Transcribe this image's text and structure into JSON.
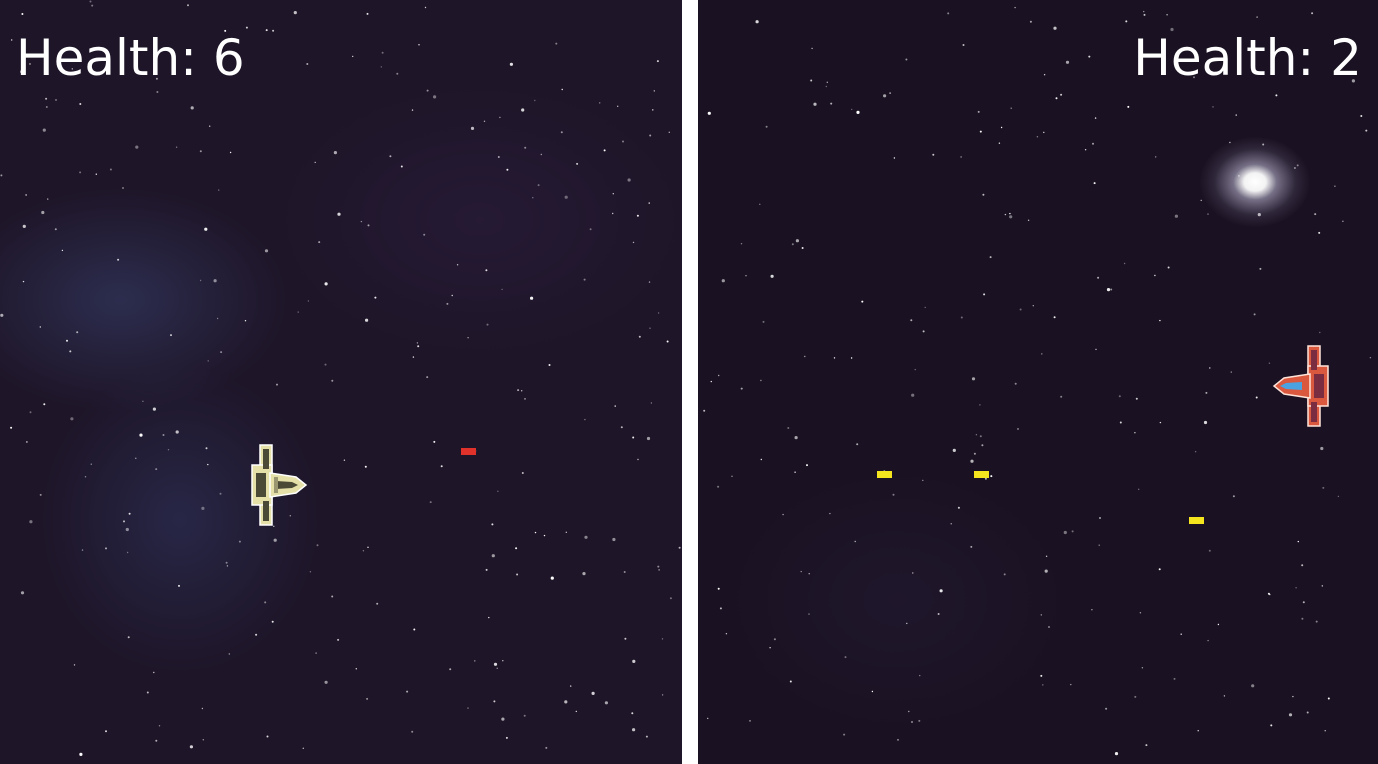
{
  "left_panel": {
    "health_label": "Health: 6",
    "ship": {
      "name": "yellow-spaceship-icon",
      "color": "#e9e6b0",
      "facing": "right"
    },
    "bullets": [
      {
        "color": "#e0322a"
      }
    ]
  },
  "right_panel": {
    "health_label": "Health: 2",
    "ship": {
      "name": "red-spaceship-icon",
      "color": "#d2543f",
      "facing": "left"
    },
    "bullets": [
      {
        "color": "#f5e51f"
      },
      {
        "color": "#f5e51f"
      },
      {
        "color": "#f5e51f"
      }
    ]
  },
  "colors": {
    "background": "#1d1326",
    "divider": "#ffffff",
    "hud_text": "#ffffff"
  }
}
